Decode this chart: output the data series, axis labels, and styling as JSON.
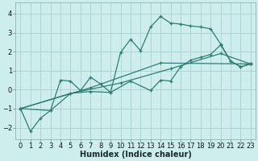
{
  "xlabel": "Humidex (Indice chaleur)",
  "background_color": "#ceeeed",
  "grid_color": "#aed4d3",
  "line_color": "#2d7d74",
  "xlim": [
    -0.5,
    23.5
  ],
  "ylim": [
    -2.6,
    4.6
  ],
  "xticks": [
    0,
    1,
    2,
    3,
    4,
    5,
    6,
    7,
    8,
    9,
    10,
    11,
    12,
    13,
    14,
    15,
    16,
    17,
    18,
    19,
    20,
    21,
    22,
    23
  ],
  "yticks": [
    -2,
    -1,
    0,
    1,
    2,
    3,
    4
  ],
  "series": [
    {
      "x": [
        0,
        1,
        2,
        3,
        4,
        5,
        6,
        7,
        8,
        9,
        10,
        11,
        12,
        13,
        14,
        15,
        16,
        17,
        18,
        19,
        20,
        21,
        22,
        23
      ],
      "y": [
        -1.0,
        -2.2,
        -1.5,
        -1.1,
        0.5,
        0.45,
        -0.05,
        0.65,
        0.3,
        -0.15,
        1.95,
        2.65,
        2.05,
        3.3,
        3.85,
        3.5,
        3.45,
        3.35,
        3.3,
        3.2,
        2.4,
        1.5,
        1.2,
        1.35
      ]
    },
    {
      "x": [
        0,
        3,
        5,
        7,
        9,
        11,
        13,
        14,
        15,
        16,
        17,
        18,
        19,
        20,
        21,
        22,
        23
      ],
      "y": [
        -1.0,
        -1.1,
        -0.2,
        -0.1,
        -0.15,
        0.45,
        -0.05,
        0.5,
        0.45,
        1.2,
        1.55,
        1.7,
        1.85,
        2.35,
        1.5,
        1.2,
        1.35
      ]
    },
    {
      "x": [
        0,
        23
      ],
      "y": [
        -1.0,
        1.35
      ]
    },
    {
      "x": [
        0,
        23
      ],
      "y": [
        -1.0,
        1.35
      ]
    }
  ],
  "series_smooth": [
    {
      "x": [
        0,
        5,
        10,
        15,
        20,
        23
      ],
      "y": [
        -1.0,
        -0.2,
        0.35,
        1.1,
        1.9,
        1.35
      ]
    },
    {
      "x": [
        0,
        7,
        14,
        23
      ],
      "y": [
        -1.0,
        0.1,
        1.4,
        1.35
      ]
    }
  ]
}
